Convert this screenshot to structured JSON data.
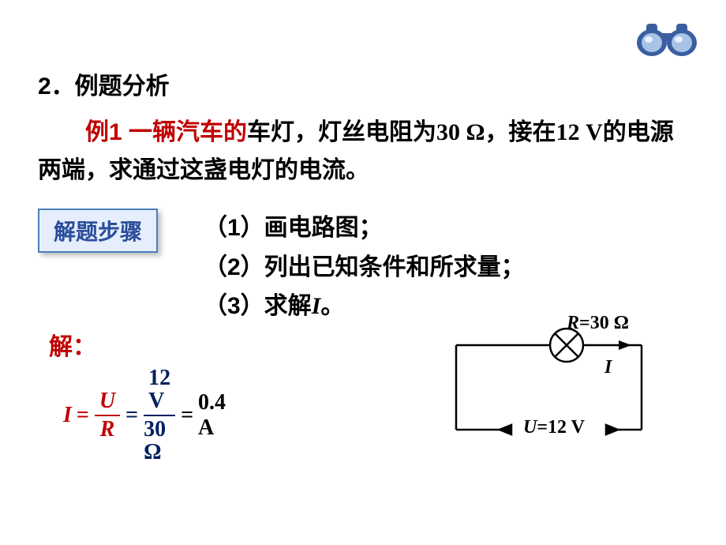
{
  "binoculars": {
    "body_color": "#3a5ea0",
    "lens_color": "#a7c4e6",
    "reflection_color": "#e8f0fa"
  },
  "section_title": "2．例题分析",
  "problem": {
    "red_prefix": "例1  一辆汽车的",
    "part2": "车灯，灯丝电阻为",
    "val_r": "30 Ω",
    "part3": "，接在",
    "val_v": "12 V",
    "part4": "的电源两端，求通过这盏电灯的电流。"
  },
  "steps_box_label": "解题步骤",
  "steps": {
    "s1_a": "（1）画电路图；",
    "s2_a": "（2）列出已知条件和所求量；",
    "s3_a": "（3）求解",
    "s3_I": "I",
    "s3_b": "。"
  },
  "solution_label": "解：",
  "formula": {
    "I": "I",
    "eq1": "=",
    "U": "U",
    "R": "R",
    "eq2": "=",
    "num12": "12 V",
    "den30": "30 Ω",
    "eq3": "=",
    "result": " 0.4 A"
  },
  "circuit": {
    "R_label": "R=30 Ω",
    "I_label": "I",
    "U_label": "U=12 V",
    "stroke": "#000000",
    "stroke_width": 2.5,
    "arrow_head": 9
  }
}
